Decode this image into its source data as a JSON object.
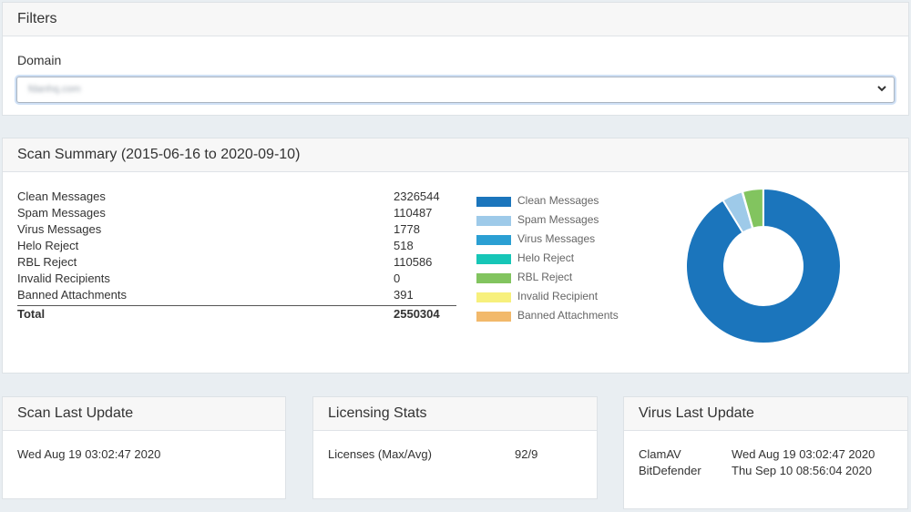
{
  "filters": {
    "title": "Filters",
    "domain_label": "Domain",
    "domain_value": "fdanhq.com"
  },
  "summary": {
    "title": "Scan Summary (2015-06-16 to 2020-09-10)",
    "rows": [
      {
        "label": "Clean Messages",
        "value": "2326544"
      },
      {
        "label": "Spam Messages",
        "value": "110487"
      },
      {
        "label": "Virus Messages",
        "value": "1778"
      },
      {
        "label": "Helo Reject",
        "value": "518"
      },
      {
        "label": "RBL Reject",
        "value": "110586"
      },
      {
        "label": "Invalid Recipients",
        "value": "0"
      },
      {
        "label": "Banned Attachments",
        "value": "391"
      }
    ],
    "total_label": "Total",
    "total_value": "2550304",
    "legend": [
      {
        "label": "Clean Messages",
        "color": "#1b75bc"
      },
      {
        "label": "Spam Messages",
        "color": "#9ecae9"
      },
      {
        "label": "Virus Messages",
        "color": "#2b9fd3"
      },
      {
        "label": "Helo Reject",
        "color": "#17c6b7"
      },
      {
        "label": "RBL Reject",
        "color": "#82c45f"
      },
      {
        "label": "Invalid Recipient",
        "color": "#f7f07c"
      },
      {
        "label": "Banned Attachments",
        "color": "#f2b96b"
      }
    ]
  },
  "chart_data": {
    "type": "pie",
    "style": "donut",
    "categories": [
      "Clean Messages",
      "Spam Messages",
      "Virus Messages",
      "Helo Reject",
      "RBL Reject",
      "Invalid Recipient",
      "Banned Attachments"
    ],
    "values": [
      2326544,
      110487,
      1778,
      518,
      110586,
      0,
      391
    ],
    "colors": [
      "#1b75bc",
      "#9ecae9",
      "#2b9fd3",
      "#17c6b7",
      "#82c45f",
      "#f7f07c",
      "#f2b96b"
    ],
    "legend_position": "left"
  },
  "scan_update": {
    "title": "Scan Last Update",
    "value": "Wed Aug 19 03:02:47 2020"
  },
  "licensing": {
    "title": "Licensing Stats",
    "label": "Licenses (Max/Avg)",
    "value": "92/9"
  },
  "virus_update": {
    "title": "Virus Last Update",
    "rows": [
      {
        "name": "ClamAV",
        "date": "Wed Aug 19 03:02:47 2020"
      },
      {
        "name": "BitDefender",
        "date": "Thu Sep 10 08:56:04 2020"
      }
    ]
  }
}
